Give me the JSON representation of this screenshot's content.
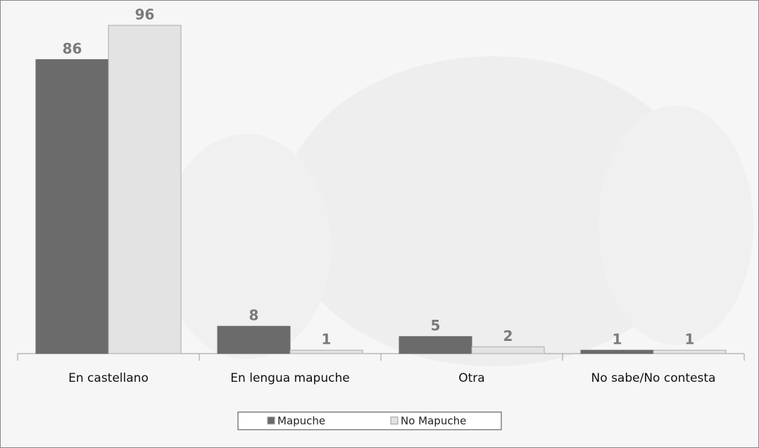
{
  "chart_data": {
    "type": "bar",
    "categories": [
      "En castellano",
      "En lengua mapuche",
      "Otra",
      "No sabe/No contesta"
    ],
    "series": [
      {
        "name": "Mapuche",
        "color": "#6b6b6b",
        "values": [
          86,
          8,
          5,
          1
        ]
      },
      {
        "name": "No Mapuche",
        "color": "#e3e3e3",
        "values": [
          96,
          1,
          2,
          1
        ]
      }
    ]
  }
}
